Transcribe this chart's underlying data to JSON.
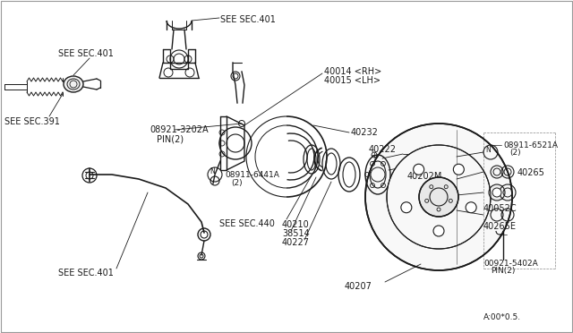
{
  "bg_color": "#ffffff",
  "line_color": "#1a1a1a",
  "fig_width": 6.4,
  "fig_height": 3.72,
  "dpi": 100,
  "labels": {
    "see_sec_401_top": "SEE SEC.401",
    "see_sec_391": "SEE SEC.391",
    "see_sec_401_bot": "SEE SEC.401",
    "see_sec_440": "SEE SEC.440",
    "p08921_3202a": "08921-3202A",
    "pin2_a": "PIN(2)",
    "p08911_6441a": "08911-6441A",
    "n2_a": "(2)",
    "p40014_rh": "40014 <RH>",
    "p40015_lh": "40015 <LH>",
    "p40232": "40232",
    "p40222": "40222",
    "p40202m": "40202M",
    "p40210": "40210",
    "p38514": "38514",
    "p40227": "40227",
    "p40207": "40207",
    "p08911_6521a": "08911-6521A",
    "n2_b": "(2)",
    "p40265": "40265",
    "p40052c": "40052C",
    "p40265e": "40265E",
    "p00921_5402a": "00921-5402A",
    "pin2_b": "PIN(2)",
    "revision": "A:00*0.5."
  }
}
